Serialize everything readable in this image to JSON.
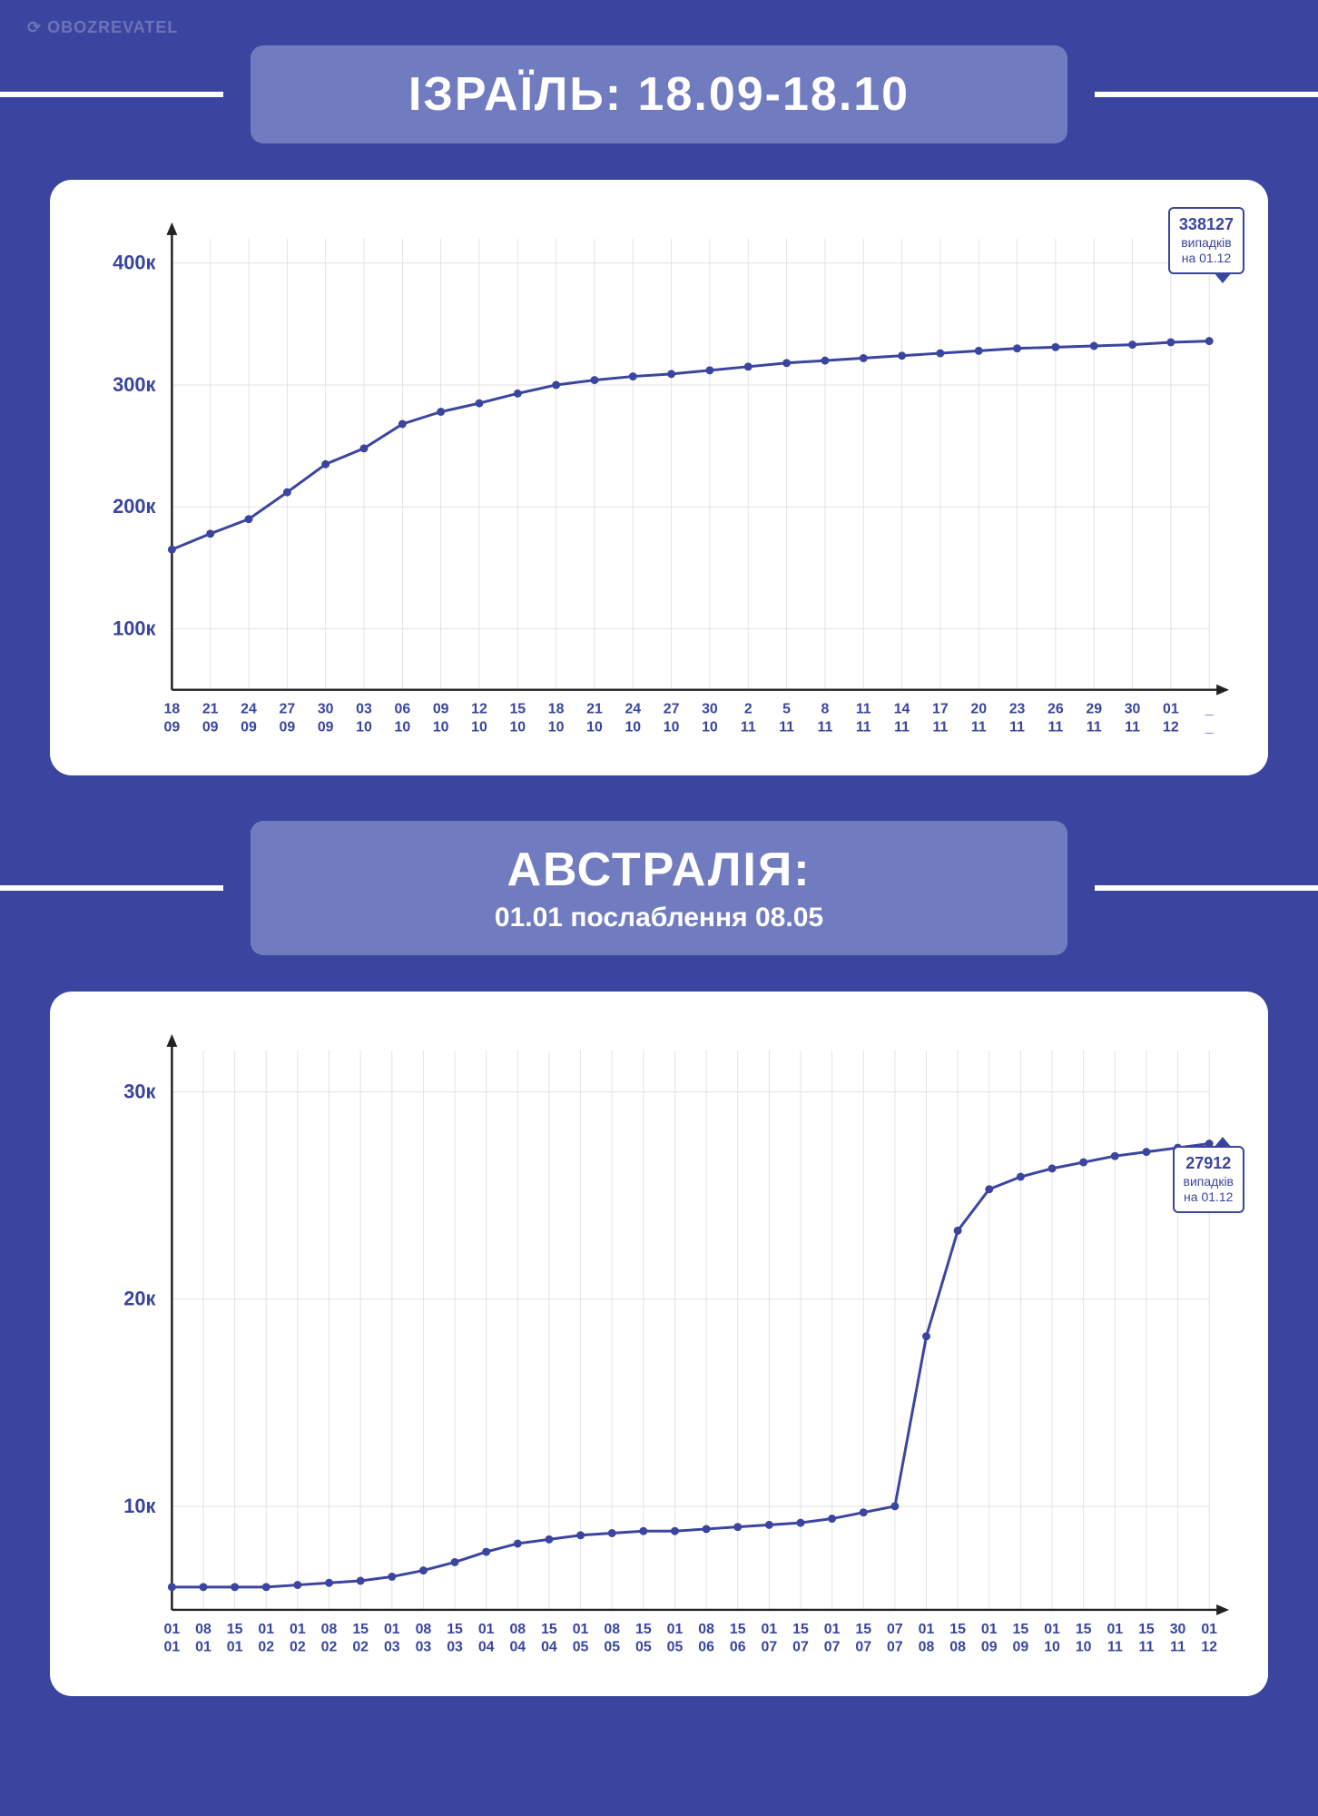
{
  "watermark": "⟳ OBOZREVATEL",
  "colors": {
    "page_bg": "#3b45a0",
    "card_bg": "#ffffff",
    "header_box_bg": "rgba(180,190,230,0.45)",
    "header_text": "#ffffff",
    "line_color": "#3b45a0",
    "marker_color": "#3b45a0",
    "axis_color": "#222222",
    "grid_color": "#e2e2e8",
    "ytick_text": "#3b45a0",
    "xtick_text": "#3b45a0"
  },
  "chart1": {
    "type": "line",
    "title": "ІЗРАЇЛЬ: 18.09-18.10",
    "subtitle": "",
    "ylim": [
      50,
      420
    ],
    "yticks": [
      100,
      200,
      300,
      400
    ],
    "ytick_labels": [
      "100к",
      "200к",
      "300к",
      "400к"
    ],
    "ytick_fontsize": 22,
    "xtick_fontsize": 16,
    "x_labels_top": [
      "18",
      "21",
      "24",
      "27",
      "30",
      "03",
      "06",
      "09",
      "12",
      "15",
      "18",
      "21",
      "24",
      "27",
      "30",
      "2",
      "5",
      "8",
      "11",
      "14",
      "17",
      "20",
      "23",
      "26",
      "29",
      "30",
      "01",
      "_"
    ],
    "x_labels_bottom": [
      "09",
      "09",
      "09",
      "09",
      "09",
      "10",
      "10",
      "10",
      "10",
      "10",
      "10",
      "10",
      "10",
      "10",
      "10",
      "11",
      "11",
      "11",
      "11",
      "11",
      "11",
      "11",
      "11",
      "11",
      "11",
      "11",
      "12",
      "_"
    ],
    "values": [
      165,
      178,
      190,
      212,
      235,
      248,
      268,
      278,
      285,
      293,
      300,
      304,
      307,
      309,
      312,
      315,
      318,
      320,
      322,
      324,
      326,
      328,
      330,
      331,
      332,
      333,
      335,
      336
    ],
    "line_width": 3,
    "marker_radius": 4.5,
    "callout": {
      "number": "338127",
      "text1": "випадків",
      "text2": "на 01.12",
      "points_to_value": 336
    }
  },
  "chart2": {
    "type": "line",
    "title": "АВСТРАЛІЯ:",
    "subtitle": "01.01 послаблення 08.05",
    "ylim": [
      5,
      32
    ],
    "yticks": [
      10,
      20,
      30
    ],
    "ytick_labels": [
      "10к",
      "20к",
      "30к"
    ],
    "ytick_fontsize": 22,
    "xtick_fontsize": 16,
    "x_labels_top": [
      "01",
      "08",
      "15",
      "01",
      "01",
      "08",
      "15",
      "01",
      "08",
      "15",
      "01",
      "08",
      "15",
      "01",
      "08",
      "15",
      "01",
      "08",
      "15",
      "01",
      "15",
      "01",
      "15",
      "07",
      "01",
      "15",
      "01",
      "15",
      "01",
      "15",
      "01",
      "15",
      "30",
      "01"
    ],
    "x_labels_bottom": [
      "01",
      "01",
      "01",
      "02",
      "02",
      "02",
      "02",
      "03",
      "03",
      "03",
      "04",
      "04",
      "04",
      "05",
      "05",
      "05",
      "05",
      "06",
      "06",
      "07",
      "07",
      "07",
      "07",
      "07",
      "08",
      "08",
      "09",
      "09",
      "10",
      "10",
      "11",
      "11",
      "11",
      "12"
    ],
    "values": [
      6.1,
      6.1,
      6.1,
      6.1,
      6.2,
      6.3,
      6.4,
      6.6,
      6.9,
      7.3,
      7.8,
      8.2,
      8.4,
      8.6,
      8.7,
      8.8,
      8.8,
      8.9,
      9.0,
      9.1,
      9.2,
      9.4,
      9.7,
      10.0,
      18.2,
      23.3,
      25.3,
      25.9,
      26.3,
      26.6,
      26.9,
      27.1,
      27.3,
      27.5
    ],
    "line_width": 3,
    "marker_radius": 4.5,
    "callout": {
      "number": "27912",
      "text1": "випадків",
      "text2": "на 01.12",
      "points_to_value": 27.5
    }
  }
}
